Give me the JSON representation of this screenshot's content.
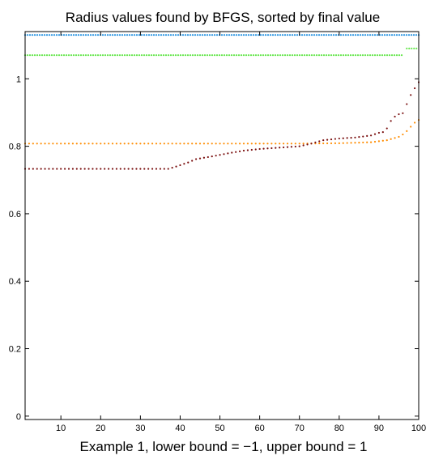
{
  "chart_data": {
    "type": "scatter",
    "title": "Radius values found by BFGS, sorted by final value",
    "xlabel": "Example 1, lower bound = −1, upper bound = 1",
    "ylabel": "",
    "xlim": [
      1,
      100
    ],
    "ylim": [
      -0.01,
      1.14
    ],
    "xticks": [
      10,
      20,
      30,
      40,
      50,
      60,
      70,
      80,
      90,
      100
    ],
    "yticks": [
      0,
      0.2,
      0.4,
      0.6,
      0.8,
      1
    ],
    "xtick_labels": [
      "10",
      "20",
      "30",
      "40",
      "50",
      "60",
      "70",
      "80",
      "90",
      "100"
    ],
    "ytick_labels": [
      "0",
      "0.2",
      "0.4",
      "0.6",
      "0.8",
      "1"
    ],
    "grid": false,
    "legend": false,
    "series": [
      {
        "color": "#1f8fe0",
        "marker": "dot",
        "points": [
          [
            1,
            1.13
          ],
          [
            100,
            1.13
          ]
        ],
        "constant_segments": [
          {
            "x_from": 1,
            "x_to": 100,
            "y": 1.13
          }
        ]
      },
      {
        "color": "#66e64d",
        "marker": "dot",
        "constant_segments": [
          {
            "x_from": 1,
            "x_to": 96,
            "y": 1.07
          },
          {
            "x_from": 97,
            "x_to": 100,
            "y": 1.09
          }
        ]
      },
      {
        "color": "#ff8c00",
        "marker": "dot",
        "anchor_points": [
          [
            1,
            0.808
          ],
          [
            70,
            0.808
          ],
          [
            80,
            0.809
          ],
          [
            88,
            0.812
          ],
          [
            92,
            0.818
          ],
          [
            95,
            0.828
          ],
          [
            96,
            0.835
          ],
          [
            97,
            0.845
          ],
          [
            98,
            0.858
          ],
          [
            99,
            0.87
          ],
          [
            100,
            0.878
          ]
        ]
      },
      {
        "color": "#7a0f0f",
        "marker": "dot",
        "anchor_points": [
          [
            1,
            0.733
          ],
          [
            37,
            0.733
          ],
          [
            39,
            0.74
          ],
          [
            42,
            0.752
          ],
          [
            44,
            0.762
          ],
          [
            48,
            0.77
          ],
          [
            52,
            0.779
          ],
          [
            56,
            0.787
          ],
          [
            60,
            0.792
          ],
          [
            65,
            0.796
          ],
          [
            70,
            0.8
          ],
          [
            73,
            0.808
          ],
          [
            76,
            0.818
          ],
          [
            80,
            0.823
          ],
          [
            84,
            0.826
          ],
          [
            88,
            0.832
          ],
          [
            90,
            0.84
          ],
          [
            91,
            0.842
          ],
          [
            92,
            0.853
          ],
          [
            93,
            0.875
          ],
          [
            94,
            0.888
          ],
          [
            95,
            0.895
          ],
          [
            96,
            0.898
          ],
          [
            97,
            0.925
          ],
          [
            98,
            0.952
          ],
          [
            99,
            0.972
          ],
          [
            100,
            0.99
          ]
        ]
      }
    ]
  }
}
